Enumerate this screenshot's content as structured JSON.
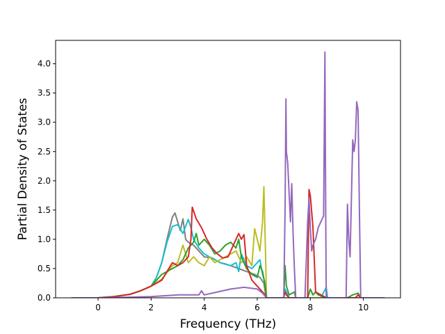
{
  "chart_data": {
    "type": "line",
    "title": "",
    "xlabel": "Frequency (THz)",
    "ylabel": "Partial Density of States",
    "xlim": [
      -1.6,
      11.4
    ],
    "ylim": [
      0.0,
      4.4
    ],
    "xticks": [
      0,
      2,
      4,
      6,
      8,
      10
    ],
    "xtick_labels": [
      "0",
      "2",
      "4",
      "6",
      "8",
      "10"
    ],
    "yticks": [
      0.0,
      0.5,
      1.0,
      1.5,
      2.0,
      2.5,
      3.0,
      3.5,
      4.0
    ],
    "ytick_labels": [
      "0.0",
      "0.5",
      "1.0",
      "1.5",
      "2.0",
      "2.5",
      "3.0",
      "3.5",
      "4.0"
    ],
    "grid": false,
    "legend": "none",
    "series": [
      {
        "color": "#7f7f7f",
        "x": [
          -1.0,
          0,
          0.6,
          1.2,
          1.6,
          2.0,
          2.2,
          2.4,
          2.6,
          2.8,
          2.9,
          3.0,
          3.1,
          3.2,
          3.3,
          3.4,
          3.6,
          3.8,
          4.0,
          4.3,
          4.6,
          5.0,
          5.3,
          5.6,
          5.9,
          6.1,
          6.25,
          6.3,
          6.35,
          7.0,
          8.6,
          9.4,
          10.0,
          10.8
        ],
        "y": [
          0,
          0,
          0.02,
          0.06,
          0.12,
          0.2,
          0.35,
          0.6,
          1.0,
          1.38,
          1.45,
          1.3,
          1.15,
          1.35,
          1.0,
          0.95,
          0.9,
          0.8,
          0.7,
          0.68,
          0.6,
          0.55,
          0.5,
          0.45,
          0.4,
          0.35,
          0.25,
          0.1,
          0.0,
          0.0,
          0.0,
          0.0,
          0.0,
          0.0
        ]
      },
      {
        "color": "#17becf",
        "x": [
          -1.0,
          0,
          0.6,
          1.2,
          1.6,
          2.0,
          2.2,
          2.4,
          2.6,
          2.8,
          3.0,
          3.2,
          3.4,
          3.5,
          3.6,
          3.8,
          4.0,
          4.2,
          4.4,
          4.6,
          4.8,
          5.0,
          5.2,
          5.3,
          5.4,
          5.6,
          5.8,
          6.0,
          6.1,
          6.2,
          6.3,
          6.35,
          7.0,
          7.05,
          7.1,
          7.2,
          8.4,
          8.6,
          8.65,
          9.4,
          10.0,
          10.8
        ],
        "y": [
          0,
          0,
          0.02,
          0.06,
          0.12,
          0.2,
          0.35,
          0.6,
          0.95,
          1.22,
          1.25,
          1.1,
          1.34,
          1.2,
          1.0,
          0.85,
          0.75,
          0.7,
          0.65,
          0.6,
          0.58,
          0.55,
          0.6,
          0.45,
          0.75,
          0.55,
          0.5,
          0.6,
          0.65,
          0.4,
          0.25,
          0.0,
          0.0,
          0.15,
          0.1,
          0.0,
          0.0,
          0.18,
          0.0,
          0.0,
          0.0,
          0.0
        ]
      },
      {
        "color": "#bcbd22",
        "x": [
          -1.0,
          0,
          0.6,
          1.2,
          1.6,
          2.0,
          2.4,
          2.8,
          3.0,
          3.2,
          3.4,
          3.6,
          3.8,
          4.0,
          4.2,
          4.4,
          4.6,
          4.8,
          5.0,
          5.2,
          5.4,
          5.6,
          5.8,
          5.9,
          6.0,
          6.1,
          6.2,
          6.25,
          6.3,
          6.35,
          7.0,
          10.8
        ],
        "y": [
          0,
          0,
          0.02,
          0.06,
          0.12,
          0.2,
          0.32,
          0.55,
          0.6,
          0.9,
          0.6,
          0.7,
          0.6,
          0.55,
          0.7,
          0.6,
          0.65,
          0.7,
          0.75,
          0.8,
          0.6,
          0.7,
          0.55,
          1.18,
          1.0,
          0.8,
          1.3,
          1.9,
          1.0,
          0.0,
          0.0,
          0.0
        ]
      },
      {
        "color": "#2ca02c",
        "x": [
          -1.0,
          0,
          0.6,
          1.2,
          1.6,
          2.0,
          2.2,
          2.4,
          2.6,
          2.8,
          3.0,
          3.2,
          3.4,
          3.6,
          3.7,
          3.8,
          4.0,
          4.2,
          4.4,
          4.6,
          4.8,
          5.0,
          5.2,
          5.3,
          5.4,
          5.6,
          5.8,
          6.0,
          6.1,
          6.2,
          6.3,
          6.35,
          7.0,
          7.05,
          7.1,
          7.2,
          7.4,
          7.45,
          7.9,
          8.0,
          8.1,
          8.2,
          8.3,
          8.6,
          9.4,
          9.6,
          9.8,
          9.9,
          10.8
        ],
        "y": [
          0,
          0,
          0.02,
          0.06,
          0.12,
          0.2,
          0.3,
          0.4,
          0.45,
          0.5,
          0.55,
          0.65,
          0.85,
          0.95,
          1.1,
          0.9,
          1.0,
          0.9,
          0.75,
          0.8,
          0.9,
          0.95,
          0.85,
          1.0,
          0.7,
          0.5,
          0.4,
          0.35,
          0.55,
          0.45,
          0.2,
          0.0,
          0.0,
          0.55,
          0.2,
          0.05,
          0.1,
          0.0,
          0.0,
          0.15,
          0.05,
          0.1,
          0.05,
          0.0,
          0.0,
          0.05,
          0.08,
          0.0,
          0.0
        ]
      },
      {
        "color": "#d62728",
        "x": [
          -1.0,
          0,
          0.6,
          1.2,
          1.6,
          2.0,
          2.4,
          2.6,
          2.8,
          3.0,
          3.2,
          3.4,
          3.5,
          3.55,
          3.7,
          3.9,
          4.1,
          4.3,
          4.5,
          4.7,
          4.9,
          5.1,
          5.3,
          5.4,
          5.5,
          5.6,
          5.8,
          6.0,
          6.1,
          6.2,
          6.3,
          6.35,
          7.0,
          7.05,
          7.1,
          7.2,
          7.4,
          7.9,
          7.95,
          8.0,
          8.1,
          8.2,
          8.4,
          8.6,
          9.4,
          9.7,
          9.8,
          9.9,
          10.8
        ],
        "y": [
          0,
          0,
          0.02,
          0.06,
          0.12,
          0.2,
          0.3,
          0.45,
          0.6,
          0.55,
          0.6,
          0.7,
          1.0,
          1.55,
          1.35,
          1.2,
          1.0,
          0.85,
          0.75,
          0.68,
          0.7,
          0.9,
          1.1,
          1.0,
          1.08,
          0.55,
          0.3,
          0.2,
          0.15,
          0.1,
          0.05,
          0.0,
          0.0,
          0.1,
          0.05,
          0.0,
          0.0,
          0.0,
          1.85,
          1.75,
          1.2,
          0.1,
          0.05,
          0.0,
          0.0,
          0.0,
          0.05,
          0.0,
          0.0
        ]
      },
      {
        "color": "#9467bd",
        "x": [
          -1.0,
          0,
          1.0,
          2.0,
          3.0,
          3.8,
          3.9,
          4.0,
          4.5,
          5.0,
          5.5,
          6.0,
          6.2,
          6.35,
          7.0,
          7.05,
          7.08,
          7.1,
          7.15,
          7.25,
          7.3,
          7.35,
          7.4,
          7.45,
          7.8,
          7.9,
          7.95,
          8.0,
          8.05,
          8.1,
          8.2,
          8.3,
          8.4,
          8.5,
          8.55,
          8.58,
          8.6,
          9.35,
          9.4,
          9.45,
          9.5,
          9.6,
          9.65,
          9.7,
          9.75,
          9.8,
          9.85,
          9.9,
          10.8
        ],
        "y": [
          0,
          0,
          0.01,
          0.02,
          0.05,
          0.05,
          0.12,
          0.05,
          0.1,
          0.15,
          0.18,
          0.15,
          0.08,
          0.0,
          0.0,
          1.5,
          3.4,
          2.5,
          2.3,
          1.3,
          1.95,
          1.1,
          0.5,
          0.0,
          0.0,
          1.3,
          1.7,
          1.2,
          0.8,
          0.9,
          1.0,
          1.2,
          1.3,
          1.4,
          4.2,
          1.5,
          0.0,
          0.0,
          1.6,
          1.0,
          0.7,
          2.7,
          2.5,
          2.7,
          3.35,
          3.2,
          1.5,
          0.0,
          0.0
        ]
      }
    ]
  }
}
